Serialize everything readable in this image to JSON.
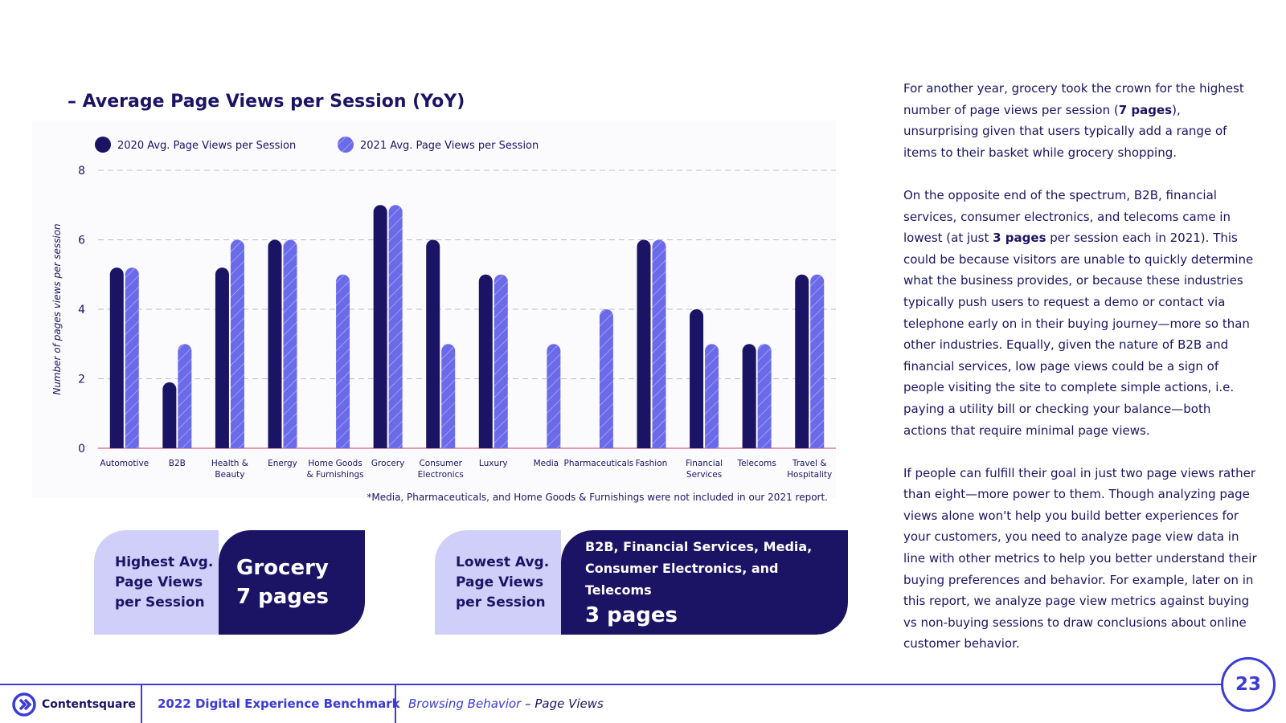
{
  "chart_data": {
    "type": "bar",
    "title": "– Average Page Views per Session (YoY)",
    "ylabel": "Number of pages views per session",
    "xlabel": "",
    "ylim": [
      0,
      8
    ],
    "yticks": [
      0,
      2,
      4,
      6,
      8
    ],
    "grid": true,
    "legend_position": "top-left",
    "categories": [
      "Automotive",
      "B2B",
      "Health & Beauty",
      "Energy",
      "Home Goods & Furnishings",
      "Grocery",
      "Consumer Electronics",
      "Luxury",
      "Media",
      "Pharmaceuticals",
      "Fashion",
      "Financial Services",
      "Telecoms",
      "Travel & Hospitality"
    ],
    "category_lines": [
      [
        "Automotive"
      ],
      [
        "B2B"
      ],
      [
        "Health &",
        "Beauty"
      ],
      [
        "Energy"
      ],
      [
        "Home Goods",
        "& Furnishings"
      ],
      [
        "Grocery"
      ],
      [
        "Consumer",
        "Electronics"
      ],
      [
        "Luxury"
      ],
      [
        "Media"
      ],
      [
        "Pharmaceuticals"
      ],
      [
        "Fashion"
      ],
      [
        "Financial",
        "Services"
      ],
      [
        "Telecoms"
      ],
      [
        "Travel &",
        "Hospitality"
      ]
    ],
    "series": [
      {
        "name": "2020 Avg. Page Views per Session",
        "values": [
          5.2,
          1.9,
          5.2,
          6,
          null,
          7,
          6,
          5,
          null,
          null,
          6,
          4,
          3,
          5
        ],
        "color": "#1b1464"
      },
      {
        "name": "2021 Avg. Page Views per Session",
        "values": [
          5.2,
          3,
          6,
          6,
          5,
          7,
          3,
          5,
          3,
          4,
          6,
          3,
          3,
          5
        ],
        "color": "#6b6bea"
      }
    ],
    "footnote": "*Media, Pharmaceuticals, and Home Goods & Furnishings were not included in our 2021 report."
  },
  "callouts": {
    "highest": {
      "label_lines": [
        "Highest Avg.",
        "Page Views",
        "per Session"
      ],
      "industry": "Grocery",
      "pages": "7 pages"
    },
    "lowest": {
      "label_lines": [
        "Lowest Avg.",
        "Page Views",
        "per Session"
      ],
      "industries_line1": "B2B, Financial Services, Media,",
      "industries_line2": "Consumer Electronics, and Telecoms",
      "pages": "3 pages"
    }
  },
  "body": {
    "p1_a": "For another year, grocery took the crown for the highest number of page views per session (",
    "p1_b": "7 pages",
    "p1_c": "), unsurprising given that users typically add a range of items to their basket while grocery shopping.",
    "p2_a": "On the opposite end of the spectrum, B2B, financial services, consumer electronics, and telecoms came in lowest (at just ",
    "p2_b": "3 pages",
    "p2_c": " per session each in 2021). This could be because visitors are unable to quickly determine what the business provides, or because these industries typically push users to request a demo or contact via telephone early on in their buying journey—more so than other industries. Equally, given the nature of B2B and financial services, low page views could be a sign of people visiting the site to complete simple actions, i.e. paying a utility bill or checking your balance—both actions that require minimal page views.",
    "p3": "If people can fulfill their goal in just two page views rather than eight—more power to them. Though analyzing page views alone won't help you build better experiences for your customers, you need to analyze page view data in line with other metrics to help you better understand their buying preferences and behavior. For example, later on in this report, we analyze page view metrics against buying vs non-buying sessions to draw conclusions about online customer behavior."
  },
  "footer": {
    "brand": "Contentsquare",
    "report": "2022 Digital Experience Benchmark",
    "section": "Browsing Behavior",
    "subsection": " – Page Views",
    "page_number": "23"
  },
  "colors": {
    "dark": "#1b1464",
    "light": "#6b6bea",
    "accent": "#3b3bd8",
    "lavender": "#cfcffa"
  }
}
